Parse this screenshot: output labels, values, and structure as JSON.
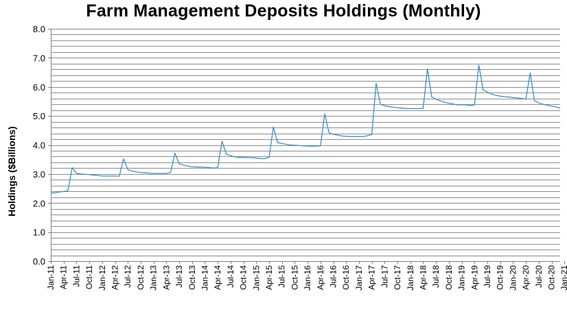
{
  "chart_data": {
    "type": "line",
    "title": "Farm Management Deposits Holdings (Monthly)",
    "ylabel": "Holdings ($Billions)",
    "xlabel": "",
    "ylim": [
      0,
      8
    ],
    "yticks": [
      "0.0",
      "1.0",
      "2.0",
      "3.0",
      "4.0",
      "5.0",
      "6.0",
      "7.0",
      "8.0"
    ],
    "grid": true,
    "legend": "none",
    "line_color": "#3b8fc4",
    "x_tick_labels": [
      "Jan-11",
      "Apr-11",
      "Jul-11",
      "Oct-11",
      "Jan-12",
      "Apr-12",
      "Jul-12",
      "Oct-12",
      "Jan-13",
      "Apr-13",
      "Jul-13",
      "Oct-13",
      "Jan-14",
      "Apr-14",
      "Jul-14",
      "Oct-14",
      "Jan-15",
      "Apr-15",
      "Jul-15",
      "Oct-15",
      "Jan-16",
      "Apr-16",
      "Jul-16",
      "Oct-16",
      "Jan-17",
      "Apr-17",
      "Jul-17",
      "Oct-17",
      "Jan-18",
      "Apr-18",
      "Jul-18",
      "Oct-18",
      "Jan-19",
      "Apr-19",
      "Jul-19",
      "Oct-19",
      "Jan-20",
      "Apr-20",
      "Jul-20",
      "Oct-20",
      "Jan-21"
    ],
    "series": [
      {
        "values": [
          2.35,
          2.35,
          2.38,
          2.4,
          2.42,
          3.22,
          3.02,
          3.0,
          2.99,
          2.98,
          2.96,
          2.95,
          2.93,
          2.93,
          2.93,
          2.93,
          2.92,
          3.52,
          3.15,
          3.1,
          3.07,
          3.05,
          3.04,
          3.03,
          3.02,
          3.02,
          3.02,
          3.02,
          3.05,
          3.72,
          3.35,
          3.31,
          3.27,
          3.25,
          3.24,
          3.24,
          3.23,
          3.22,
          3.2,
          3.22,
          4.13,
          3.68,
          3.63,
          3.59,
          3.57,
          3.57,
          3.56,
          3.56,
          3.55,
          3.53,
          3.53,
          3.57,
          4.62,
          4.08,
          4.05,
          4.02,
          4.0,
          3.99,
          3.98,
          3.97,
          3.96,
          3.96,
          3.96,
          3.97,
          5.07,
          4.42,
          4.37,
          4.34,
          4.31,
          4.3,
          4.29,
          4.29,
          4.29,
          4.29,
          4.32,
          4.36,
          6.12,
          5.4,
          5.35,
          5.32,
          5.3,
          5.28,
          5.27,
          5.26,
          5.25,
          5.25,
          5.25,
          5.27,
          6.62,
          5.65,
          5.58,
          5.52,
          5.47,
          5.44,
          5.41,
          5.38,
          5.38,
          5.38,
          5.35,
          5.38,
          6.75,
          5.9,
          5.82,
          5.75,
          5.71,
          5.68,
          5.66,
          5.65,
          5.63,
          5.62,
          5.6,
          5.58,
          6.48,
          5.52,
          5.45,
          5.4,
          5.37,
          5.34,
          5.31,
          5.27
        ]
      }
    ]
  }
}
